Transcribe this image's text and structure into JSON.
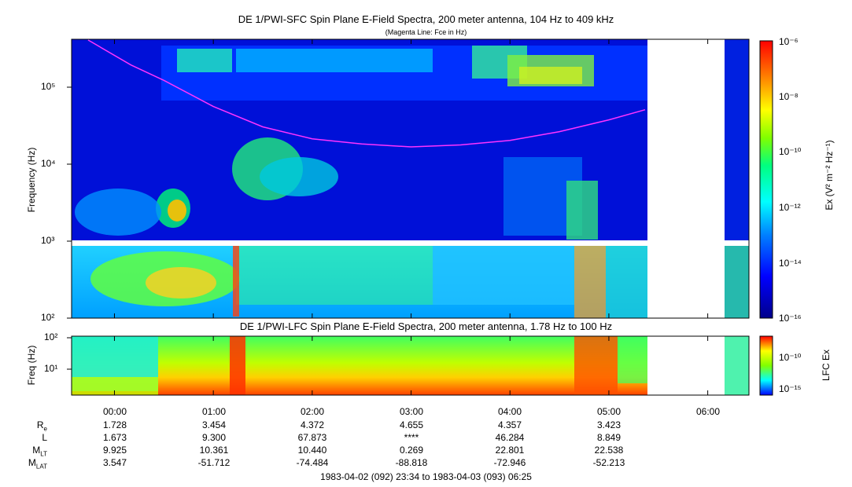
{
  "top_panel": {
    "title": "DE 1/PWI-SFC  Spin Plane E-Field Spectra, 200 meter antenna, 104 Hz to 409 kHz",
    "subtitle": "(Magenta Line: Fce in Hz)",
    "ylabel": "Frequency (Hz)",
    "colorbar_label": "Ex (V² m⁻² Hz⁻¹)",
    "colorbar_ticks": [
      "10⁻⁶",
      "10⁻⁸",
      "10⁻¹⁰",
      "10⁻¹²",
      "10⁻¹⁴",
      "10⁻¹⁶"
    ],
    "ytick_labels": [
      "10⁵",
      "10⁴",
      "10³",
      "10²"
    ]
  },
  "bottom_panel": {
    "title": "DE 1/PWI-LFC  Spin Plane E-Field Spectra, 200 meter antenna, 1.78 Hz to 100 Hz",
    "ylabel": "Freq (Hz)",
    "colorbar_label": "LFC Ex",
    "colorbar_ticks": [
      "10⁻¹⁰",
      "10⁻¹⁵"
    ],
    "ytick_labels": [
      "10²",
      "10¹"
    ]
  },
  "time_axis": {
    "labels": [
      "00:00",
      "01:00",
      "02:00",
      "03:00",
      "04:00",
      "05:00",
      "06:00"
    ],
    "range_text": "1983-04-02 (092) 23:34 to 1983-04-03 (093) 06:25"
  },
  "ephemeris": {
    "rows": [
      {
        "label": "R",
        "label_sub": "e",
        "values": [
          "1.728",
          "3.454",
          "4.372",
          "4.655",
          "4.357",
          "3.423"
        ]
      },
      {
        "label": "L",
        "label_sub": "",
        "values": [
          "1.673",
          "9.300",
          "67.873",
          "****",
          "46.284",
          "8.849"
        ]
      },
      {
        "label": "M",
        "label_sub": "LT",
        "values": [
          "9.925",
          "10.361",
          "10.440",
          "0.269",
          "22.801",
          "22.538"
        ]
      },
      {
        "label": "M",
        "label_sub": "LAT",
        "values": [
          "3.547",
          "-51.712",
          "-74.484",
          "-88.818",
          "-72.946",
          "-52.213"
        ]
      }
    ]
  },
  "chart_data": [
    {
      "type": "heatmap",
      "title": "DE 1/PWI-SFC  Spin Plane E-Field Spectra, 200 meter antenna, 104 Hz to 409 kHz",
      "ylabel": "Frequency (Hz)",
      "y_scale": "log",
      "ylim": [
        100,
        409000
      ],
      "x_range": [
        "23:34",
        "06:25"
      ],
      "colorbar": {
        "label": "Ex (V^2 m^-2 Hz^-1)",
        "range": [
          1e-16,
          1e-06
        ],
        "scale": "log"
      },
      "data_gap": [
        "05:24",
        "06:10"
      ],
      "overlay_line": {
        "name": "Fce in Hz",
        "color": "#ff33ff",
        "points": [
          {
            "t": "23:44",
            "f": 400000
          },
          {
            "t": "00:10",
            "f": 190000
          },
          {
            "t": "00:30",
            "f": 120000
          },
          {
            "t": "01:00",
            "f": 55000
          },
          {
            "t": "01:30",
            "f": 30000
          },
          {
            "t": "02:00",
            "f": 21000
          },
          {
            "t": "02:30",
            "f": 18000
          },
          {
            "t": "03:00",
            "f": 16500
          },
          {
            "t": "03:30",
            "f": 17500
          },
          {
            "t": "04:00",
            "f": 20000
          },
          {
            "t": "04:30",
            "f": 26000
          },
          {
            "t": "05:00",
            "f": 37000
          },
          {
            "t": "05:22",
            "f": 50000
          }
        ]
      }
    },
    {
      "type": "heatmap",
      "title": "DE 1/PWI-LFC  Spin Plane E-Field Spectra, 200 meter antenna, 1.78 Hz to 100 Hz",
      "ylabel": "Freq (Hz)",
      "y_scale": "log",
      "ylim": [
        1.78,
        100
      ],
      "x_range": [
        "23:34",
        "06:25"
      ],
      "colorbar": {
        "label": "LFC Ex",
        "scale": "log"
      },
      "data_gap": [
        "05:24",
        "06:10"
      ]
    }
  ],
  "colors": {
    "spectrum": [
      "#00008b",
      "#0000ff",
      "#0080ff",
      "#00ffff",
      "#00ff80",
      "#80ff00",
      "#ffff00",
      "#ff8000",
      "#ff0000"
    ],
    "fce_line": "#ff33ff"
  }
}
